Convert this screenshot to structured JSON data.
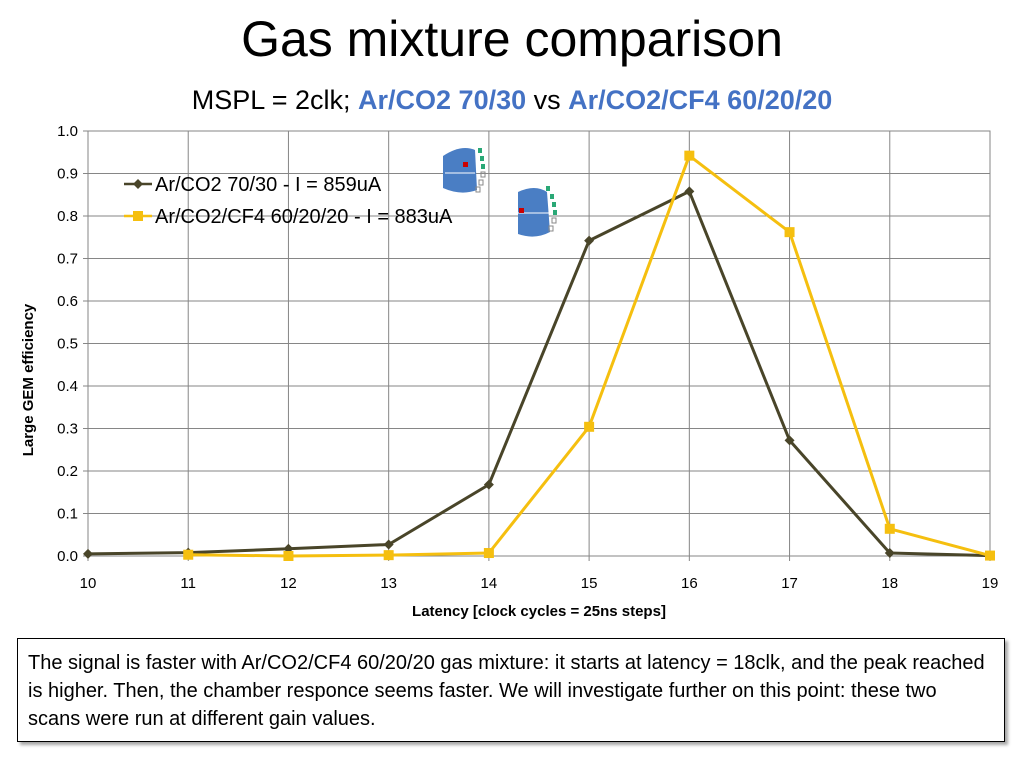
{
  "title": "Gas mixture comparison",
  "subtitle": {
    "prefix": "MSPL = 2clk; ",
    "series_a": "Ar/CO2 70/30",
    "vs": " vs ",
    "series_b": "Ar/CO2/CF4 60/20/20",
    "highlight_color": "#4472c4"
  },
  "chart_data": {
    "type": "line",
    "xlabel": "Latency [clock cycles = 25ns steps]",
    "ylabel": "Large GEM efficiency",
    "xlim": [
      10,
      19
    ],
    "ylim": [
      0,
      1.0
    ],
    "x_ticks": [
      "10",
      "11",
      "12",
      "13",
      "14",
      "15",
      "16",
      "17",
      "18",
      "19"
    ],
    "y_ticks": [
      "0.0",
      "0.1",
      "0.2",
      "0.3",
      "0.4",
      "0.5",
      "0.6",
      "0.7",
      "0.8",
      "0.9",
      "1.0"
    ],
    "grid": true,
    "legend_position": "top-left",
    "series": [
      {
        "name": "Ar/CO2 70/30 - I = 859uA",
        "color": "#494529",
        "marker": "diamond",
        "x": [
          10,
          11,
          12,
          13,
          14,
          15,
          16,
          17,
          18,
          19
        ],
        "y": [
          0.005,
          0.008,
          0.017,
          0.027,
          0.168,
          0.742,
          0.858,
          0.272,
          0.007,
          0.001
        ]
      },
      {
        "name": "Ar/CO2/CF4 60/20/20 - I = 883uA",
        "color": "#f5bf0f",
        "marker": "square",
        "x": [
          11,
          12,
          13,
          14,
          15,
          16,
          17,
          18,
          19
        ],
        "y": [
          0.003,
          0.0,
          0.002,
          0.007,
          0.304,
          0.942,
          0.762,
          0.064,
          0.001
        ]
      }
    ]
  },
  "note": "The signal is faster with Ar/CO2/CF4 60/20/20 gas mixture: it starts at latency = 18clk, and the peak reached is higher. Then, the chamber responce seems faster. We will investigate further on this point: these two scans were run at different gain values."
}
